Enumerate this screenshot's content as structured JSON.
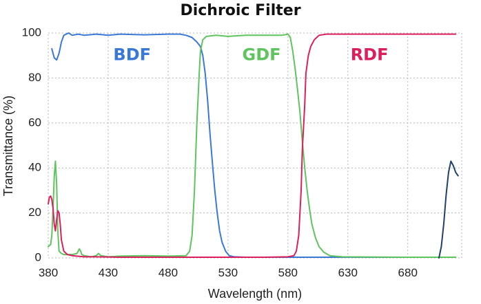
{
  "chart_data": {
    "type": "line",
    "title": "Dichroic Filter",
    "xlabel": "Wavelength (nm)",
    "ylabel": "Transmittance (%)",
    "xlim": [
      380,
      725
    ],
    "ylim": [
      0,
      100
    ],
    "xticks": [
      380,
      430,
      480,
      530,
      580,
      630,
      680
    ],
    "yticks": [
      0,
      20,
      40,
      60,
      80,
      100
    ],
    "grid": true,
    "series": [
      {
        "name": "BDF",
        "color": "#3a78d8",
        "label_at": [
          450,
          90
        ],
        "points": [
          [
            383,
            93
          ],
          [
            385,
            89
          ],
          [
            387,
            88
          ],
          [
            389,
            91
          ],
          [
            391,
            96
          ],
          [
            393,
            99
          ],
          [
            397,
            100
          ],
          [
            400,
            99
          ],
          [
            405,
            99.5
          ],
          [
            410,
            99
          ],
          [
            420,
            99.5
          ],
          [
            430,
            99
          ],
          [
            440,
            99.5
          ],
          [
            460,
            99.2
          ],
          [
            480,
            99.5
          ],
          [
            490,
            99.5
          ],
          [
            495,
            99
          ],
          [
            500,
            98
          ],
          [
            504,
            96
          ],
          [
            507,
            94
          ],
          [
            509,
            90
          ],
          [
            511,
            82
          ],
          [
            513,
            70
          ],
          [
            515,
            55
          ],
          [
            517,
            42
          ],
          [
            519,
            30
          ],
          [
            521,
            20
          ],
          [
            523,
            12
          ],
          [
            525,
            7
          ],
          [
            528,
            3
          ],
          [
            531,
            1
          ],
          [
            535,
            0.5
          ],
          [
            545,
            0.3
          ],
          [
            600,
            0.3
          ],
          [
            660,
            0.3
          ],
          [
            720,
            0.3
          ]
        ]
      },
      {
        "name": "GDF",
        "color": "#5ec45e",
        "label_at": [
          558,
          90
        ],
        "points": [
          [
            380,
            5
          ],
          [
            382,
            6
          ],
          [
            383,
            10
          ],
          [
            384,
            22
          ],
          [
            385,
            36
          ],
          [
            386,
            43
          ],
          [
            387,
            33
          ],
          [
            388,
            12
          ],
          [
            389,
            3
          ],
          [
            391,
            2
          ],
          [
            393,
            1.5
          ],
          [
            400,
            1.5
          ],
          [
            404,
            2
          ],
          [
            406,
            4
          ],
          [
            407,
            3
          ],
          [
            408,
            1.5
          ],
          [
            410,
            1
          ],
          [
            416,
            0.5
          ],
          [
            420,
            1
          ],
          [
            422,
            2
          ],
          [
            424,
            1
          ],
          [
            430,
            0.5
          ],
          [
            440,
            0.8
          ],
          [
            460,
            1
          ],
          [
            480,
            0.8
          ],
          [
            495,
            1
          ],
          [
            498,
            3
          ],
          [
            500,
            10
          ],
          [
            502,
            30
          ],
          [
            504,
            60
          ],
          [
            506,
            82
          ],
          [
            507,
            92
          ],
          [
            509,
            97
          ],
          [
            512,
            98.5
          ],
          [
            520,
            99
          ],
          [
            530,
            98.5
          ],
          [
            545,
            99
          ],
          [
            560,
            99
          ],
          [
            575,
            99
          ],
          [
            580,
            99.5
          ],
          [
            582,
            98
          ],
          [
            584,
            92
          ],
          [
            586,
            84
          ],
          [
            588,
            75
          ],
          [
            590,
            65
          ],
          [
            592,
            52
          ],
          [
            594,
            40
          ],
          [
            596,
            30
          ],
          [
            598,
            22
          ],
          [
            600,
            15
          ],
          [
            603,
            9
          ],
          [
            606,
            5
          ],
          [
            610,
            2.5
          ],
          [
            615,
            1
          ],
          [
            625,
            0.5
          ],
          [
            680,
            0.3
          ],
          [
            720,
            0.3
          ]
        ]
      },
      {
        "name": "RDF",
        "color": "#dc1f5c",
        "label_at": [
          648,
          90
        ],
        "points": [
          [
            380,
            24
          ],
          [
            381,
            27
          ],
          [
            382,
            27.5
          ],
          [
            383,
            26
          ],
          [
            384,
            22
          ],
          [
            385,
            15
          ],
          [
            386,
            12
          ],
          [
            387,
            17
          ],
          [
            388,
            21
          ],
          [
            389,
            20
          ],
          [
            390,
            15
          ],
          [
            391,
            8
          ],
          [
            393,
            3
          ],
          [
            396,
            1.5
          ],
          [
            400,
            1
          ],
          [
            410,
            0.5
          ],
          [
            420,
            0.5
          ],
          [
            440,
            0.3
          ],
          [
            500,
            0.3
          ],
          [
            560,
            0.3
          ],
          [
            580,
            0.5
          ],
          [
            585,
            1
          ],
          [
            587,
            3
          ],
          [
            589,
            10
          ],
          [
            591,
            30
          ],
          [
            592,
            48
          ],
          [
            594,
            68
          ],
          [
            595,
            82
          ],
          [
            597,
            90
          ],
          [
            599,
            94
          ],
          [
            602,
            97
          ],
          [
            606,
            99
          ],
          [
            612,
            99.5
          ],
          [
            630,
            99.5
          ],
          [
            680,
            99.5
          ],
          [
            720,
            99.5
          ]
        ]
      },
      {
        "name": "",
        "color": "#1f3f6e",
        "points": [
          [
            706,
            0
          ],
          [
            708,
            5
          ],
          [
            710,
            15
          ],
          [
            712,
            28
          ],
          [
            714,
            38
          ],
          [
            716,
            43
          ],
          [
            718,
            41
          ],
          [
            720,
            38
          ],
          [
            722,
            36.5
          ]
        ]
      }
    ]
  }
}
